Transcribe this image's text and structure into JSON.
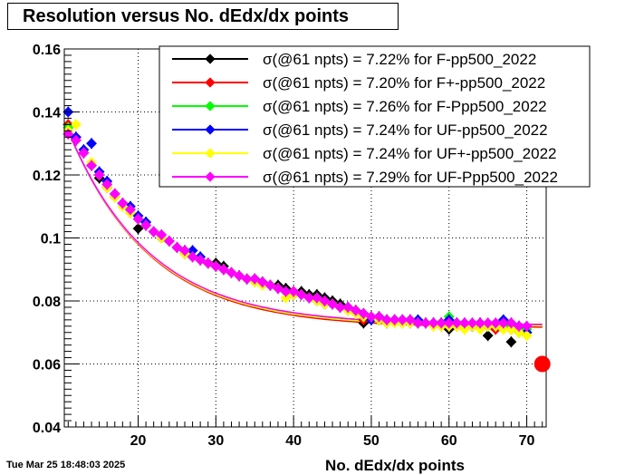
{
  "chart_data": {
    "type": "scatter",
    "title": "Resolution versus No. dEdx/dx points",
    "xlabel": "No. dEdx/dx points",
    "ylabel": "",
    "xlim": [
      10.5,
      72.5
    ],
    "ylim": [
      0.04,
      0.16
    ],
    "xticks": [
      20,
      30,
      40,
      50,
      60,
      70
    ],
    "yticks": [
      0.04,
      0.06,
      0.08,
      0.1,
      0.12,
      0.14,
      0.16
    ],
    "ytick_labels": [
      "0.04",
      "0.06",
      "0.08",
      "0.1",
      "0.12",
      "0.14",
      "0.16"
    ],
    "grid": true,
    "legend_position": "top-right",
    "x": [
      11,
      12,
      13,
      14,
      15,
      16,
      17,
      18,
      19,
      20,
      21,
      22,
      23,
      24,
      25,
      26,
      27,
      28,
      29,
      30,
      31,
      32,
      33,
      34,
      35,
      36,
      37,
      38,
      39,
      40,
      41,
      42,
      43,
      44,
      45,
      46,
      47,
      48,
      49,
      50,
      51,
      52,
      53,
      54,
      55,
      56,
      57,
      58,
      59,
      60,
      61,
      62,
      63,
      64,
      65,
      66,
      67,
      68,
      69,
      70
    ],
    "series": [
      {
        "name": "σ(@61 npts) =  7.22% for F-pp500_2022",
        "color": "#000000",
        "sigma": 0.0722,
        "values": [
          0.136,
          0.131,
          0.127,
          0.123,
          0.119,
          0.116,
          0.113,
          0.111,
          0.109,
          0.103,
          0.105,
          0.102,
          0.1,
          0.099,
          0.097,
          0.096,
          0.094,
          0.093,
          0.092,
          0.092,
          0.091,
          0.089,
          0.088,
          0.087,
          0.087,
          0.086,
          0.085,
          0.085,
          0.084,
          0.083,
          0.083,
          0.082,
          0.082,
          0.081,
          0.08,
          0.079,
          0.078,
          0.077,
          0.073,
          0.075,
          0.074,
          0.073,
          0.074,
          0.074,
          0.074,
          0.073,
          0.073,
          0.073,
          0.073,
          0.071,
          0.073,
          0.072,
          0.072,
          0.073,
          0.069,
          0.072,
          0.073,
          0.067,
          0.071,
          0.07
        ]
      },
      {
        "name": "σ(@61 npts) =  7.20% for F+-pp500_2022",
        "color": "#ff0000",
        "sigma": 0.072,
        "values": [
          0.136,
          0.132,
          0.127,
          0.123,
          0.12,
          0.116,
          0.113,
          0.111,
          0.108,
          0.106,
          0.104,
          0.102,
          0.1,
          0.099,
          0.097,
          0.095,
          0.094,
          0.093,
          0.092,
          0.091,
          0.09,
          0.089,
          0.088,
          0.087,
          0.087,
          0.086,
          0.085,
          0.084,
          0.083,
          0.083,
          0.082,
          0.081,
          0.081,
          0.08,
          0.079,
          0.078,
          0.077,
          0.077,
          0.074,
          0.075,
          0.074,
          0.074,
          0.074,
          0.073,
          0.074,
          0.073,
          0.073,
          0.073,
          0.072,
          0.072,
          0.072,
          0.072,
          0.072,
          0.072,
          0.072,
          0.071,
          0.072,
          0.071,
          0.071,
          0.07
        ]
      },
      {
        "name": "σ(@61 npts) =  7.26% for F-Ppp500_2022",
        "color": "#00ff00",
        "sigma": 0.0726,
        "values": [
          0.135,
          0.131,
          0.127,
          0.123,
          0.12,
          0.117,
          0.113,
          0.111,
          0.109,
          0.106,
          0.104,
          0.102,
          0.101,
          0.099,
          0.097,
          0.096,
          0.094,
          0.093,
          0.092,
          0.091,
          0.09,
          0.089,
          0.088,
          0.087,
          0.086,
          0.086,
          0.085,
          0.084,
          0.083,
          0.082,
          0.082,
          0.081,
          0.081,
          0.08,
          0.079,
          0.078,
          0.078,
          0.077,
          0.076,
          0.075,
          0.075,
          0.074,
          0.074,
          0.073,
          0.074,
          0.073,
          0.073,
          0.073,
          0.073,
          0.075,
          0.073,
          0.072,
          0.073,
          0.073,
          0.072,
          0.072,
          0.073,
          0.072,
          0.07,
          0.071
        ]
      },
      {
        "name": "σ(@61 npts) =  7.24% for UF-pp500_2022",
        "color": "#0000ff",
        "sigma": 0.0724,
        "values": [
          0.14,
          0.132,
          0.128,
          0.13,
          0.121,
          0.118,
          0.114,
          0.111,
          0.11,
          0.107,
          0.105,
          0.102,
          0.1,
          0.099,
          0.097,
          0.096,
          0.096,
          0.094,
          0.092,
          0.091,
          0.09,
          0.089,
          0.088,
          0.087,
          0.087,
          0.086,
          0.085,
          0.084,
          0.083,
          0.082,
          0.082,
          0.081,
          0.08,
          0.079,
          0.079,
          0.078,
          0.078,
          0.077,
          0.076,
          0.074,
          0.075,
          0.074,
          0.074,
          0.074,
          0.073,
          0.074,
          0.073,
          0.073,
          0.073,
          0.074,
          0.073,
          0.073,
          0.072,
          0.073,
          0.072,
          0.072,
          0.074,
          0.073,
          0.072,
          0.07
        ]
      },
      {
        "name": "σ(@61 npts) =  7.24% for UF+-pp500_2022",
        "color": "#ffff00",
        "sigma": 0.0724,
        "values": [
          0.134,
          0.136,
          0.127,
          0.124,
          0.12,
          0.116,
          0.113,
          0.11,
          0.108,
          0.106,
          0.104,
          0.102,
          0.1,
          0.099,
          0.097,
          0.095,
          0.094,
          0.093,
          0.092,
          0.091,
          0.09,
          0.089,
          0.088,
          0.087,
          0.086,
          0.085,
          0.085,
          0.084,
          0.081,
          0.082,
          0.082,
          0.081,
          0.08,
          0.079,
          0.079,
          0.078,
          0.077,
          0.076,
          0.075,
          0.075,
          0.074,
          0.073,
          0.073,
          0.073,
          0.073,
          0.073,
          0.073,
          0.072,
          0.072,
          0.072,
          0.072,
          0.071,
          0.072,
          0.071,
          0.072,
          0.072,
          0.071,
          0.071,
          0.07,
          0.069
        ]
      },
      {
        "name": "σ(@61 npts) =  7.29% for UF-Ppp500_2022",
        "color": "#ff00ff",
        "sigma": 0.0729,
        "values": [
          0.133,
          0.131,
          0.127,
          0.123,
          0.12,
          0.117,
          0.114,
          0.111,
          0.109,
          0.106,
          0.104,
          0.102,
          0.101,
          0.099,
          0.097,
          0.096,
          0.094,
          0.093,
          0.092,
          0.091,
          0.09,
          0.089,
          0.088,
          0.087,
          0.087,
          0.086,
          0.085,
          0.084,
          0.083,
          0.083,
          0.082,
          0.081,
          0.081,
          0.08,
          0.079,
          0.078,
          0.078,
          0.077,
          0.076,
          0.075,
          0.075,
          0.074,
          0.074,
          0.074,
          0.074,
          0.073,
          0.073,
          0.073,
          0.073,
          0.073,
          0.073,
          0.073,
          0.073,
          0.073,
          0.073,
          0.073,
          0.073,
          0.073,
          0.072,
          0.072
        ]
      }
    ],
    "reference_marker": {
      "x": 72,
      "y": 0.06,
      "color": "#ff0000"
    }
  },
  "timestamp": "Tue Mar 25 18:48:03 2025"
}
